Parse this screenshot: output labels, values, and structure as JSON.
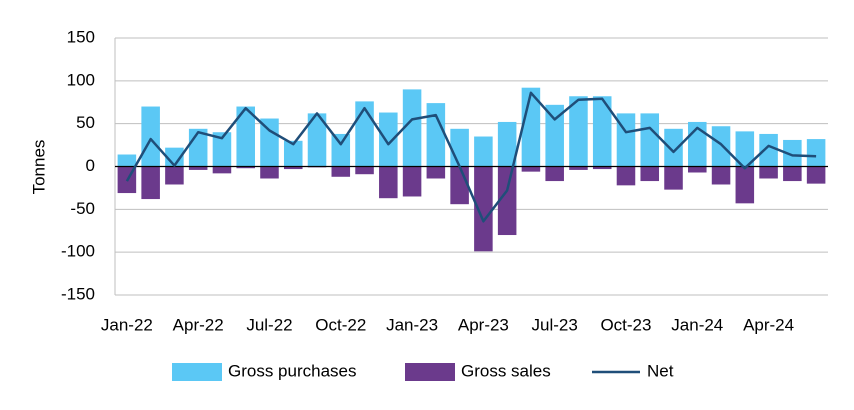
{
  "chart_data": {
    "type": "bar",
    "ylabel": "Tonnes",
    "xlabel": "",
    "title": "",
    "ylim": [
      -150,
      150
    ],
    "yticks": [
      150,
      100,
      50,
      0,
      -50,
      -100,
      -150
    ],
    "grid": true,
    "legend_position": "bottom",
    "categories": [
      "Jan-22",
      "Feb-22",
      "Mar-22",
      "Apr-22",
      "May-22",
      "Jun-22",
      "Jul-22",
      "Aug-22",
      "Sep-22",
      "Oct-22",
      "Nov-22",
      "Dec-22",
      "Jan-23",
      "Feb-23",
      "Mar-23",
      "Apr-23",
      "May-23",
      "Jun-23",
      "Jul-23",
      "Aug-23",
      "Sep-23",
      "Oct-23",
      "Nov-23",
      "Dec-23",
      "Jan-24",
      "Feb-24",
      "Mar-24",
      "Apr-24",
      "May-24",
      "Jun-24"
    ],
    "x_tick_labels": [
      "Jan-22",
      "Apr-22",
      "Jul-22",
      "Oct-22",
      "Jan-23",
      "Apr-23",
      "Jul-23",
      "Oct-23",
      "Jan-24",
      "Apr-24"
    ],
    "x_tick_indices": [
      0,
      3,
      6,
      9,
      12,
      15,
      18,
      21,
      24,
      27
    ],
    "series": [
      {
        "name": "Gross purchases",
        "type": "bar",
        "color": "#5BC8F5",
        "values": [
          14,
          70,
          22,
          44,
          40,
          70,
          56,
          30,
          62,
          38,
          76,
          63,
          90,
          74,
          44,
          35,
          52,
          92,
          72,
          82,
          82,
          62,
          62,
          44,
          52,
          47,
          41,
          38,
          31,
          32
        ]
      },
      {
        "name": "Gross sales",
        "type": "bar",
        "color": "#6B3A8C",
        "values": [
          -31,
          -38,
          -21,
          -4,
          -8,
          -2,
          -14,
          -3,
          -1,
          -12,
          -9,
          -37,
          -35,
          -14,
          -44,
          -99,
          -80,
          -6,
          -17,
          -4,
          -3,
          -22,
          -17,
          -27,
          -7,
          -21,
          -43,
          -14,
          -17,
          -20
        ]
      },
      {
        "name": "Net",
        "type": "line",
        "color": "#1F4E79",
        "values": [
          -17,
          32,
          1,
          40,
          33,
          68,
          42,
          26,
          62,
          26,
          68,
          26,
          55,
          60,
          0,
          -64,
          -28,
          86,
          55,
          78,
          79,
          40,
          45,
          17,
          45,
          26,
          -2,
          24,
          13,
          12
        ]
      }
    ]
  }
}
